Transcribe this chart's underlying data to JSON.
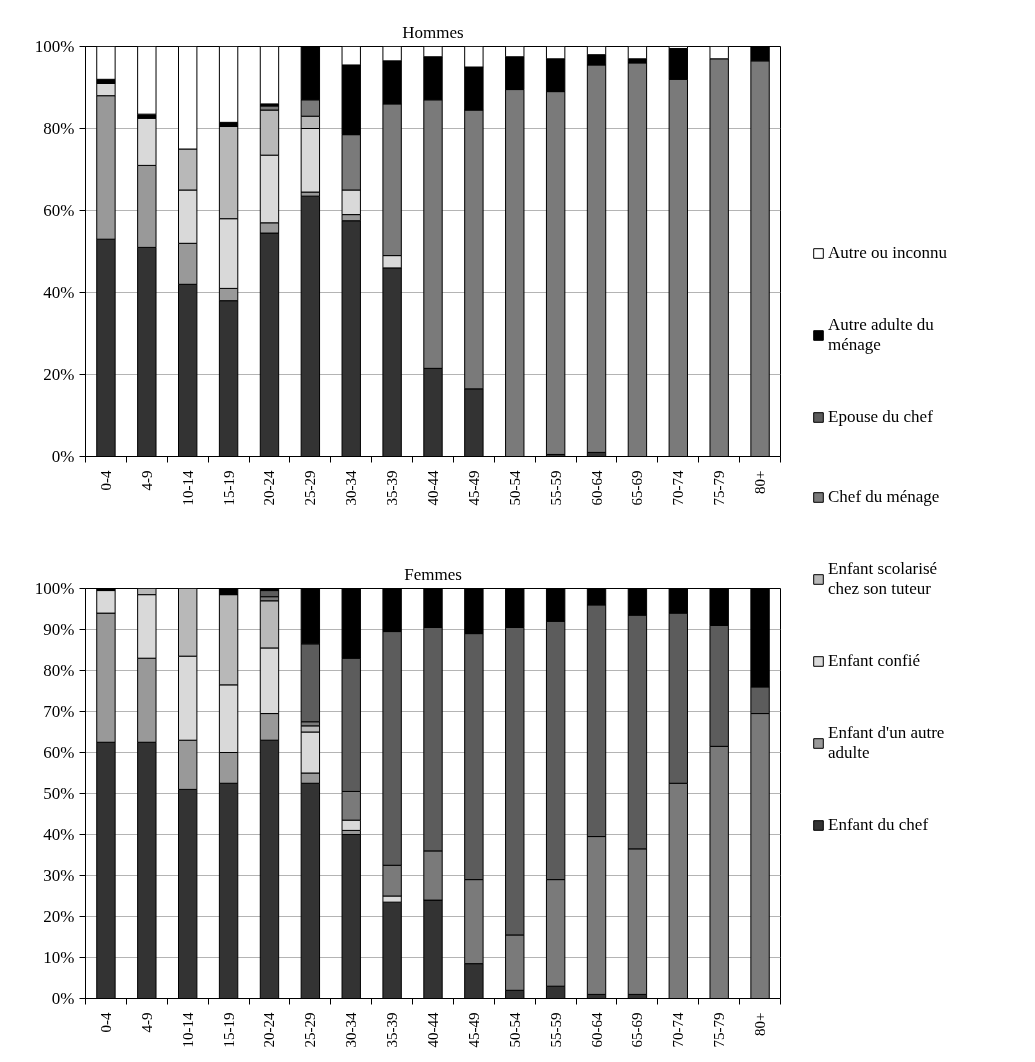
{
  "chart_data": [
    {
      "type": "bar",
      "stacked": true,
      "title": "Hommes",
      "categories": [
        "0-4",
        "4-9",
        "10-14",
        "15-19",
        "20-24",
        "25-29",
        "30-34",
        "35-39",
        "40-44",
        "45-49",
        "50-54",
        "55-59",
        "60-64",
        "65-69",
        "70-74",
        "75-79",
        "80+"
      ],
      "series": [
        {
          "name": "Enfant du chef",
          "color": "#333333",
          "values": [
            53,
            51,
            42,
            38,
            54.5,
            63.5,
            57.5,
            46,
            21.5,
            16.5,
            null,
            0.5,
            1,
            null,
            null,
            null,
            null
          ]
        },
        {
          "name": "Enfant d'un autre adulte",
          "color": "#999999",
          "values": [
            35,
            20,
            10,
            3,
            2.5,
            1,
            1.5,
            null,
            null,
            null,
            null,
            null,
            null,
            null,
            null,
            null,
            null
          ]
        },
        {
          "name": "Enfant confié",
          "color": "#d9d9d9",
          "values": [
            3,
            11.5,
            13,
            17,
            16.5,
            15.5,
            6,
            3,
            null,
            null,
            null,
            null,
            null,
            null,
            null,
            null,
            null
          ]
        },
        {
          "name": "Enfant scolarisé chez son tuteur",
          "color": "#b8b8b8",
          "values": [
            null,
            null,
            10,
            22.5,
            11,
            3,
            null,
            null,
            null,
            null,
            null,
            null,
            null,
            null,
            null,
            null,
            null
          ]
        },
        {
          "name": "Chef du ménage",
          "color": "#7a7a7a",
          "values": [
            null,
            null,
            null,
            null,
            1,
            4,
            13.5,
            37,
            65.5,
            68,
            89.5,
            88.5,
            94.5,
            96,
            92,
            97,
            96.5
          ]
        },
        {
          "name": "Epouse du chef",
          "color": "#5c5c5c",
          "values": [
            null,
            null,
            null,
            null,
            null,
            null,
            null,
            null,
            null,
            null,
            null,
            null,
            null,
            null,
            null,
            null,
            null
          ]
        },
        {
          "name": "Autre adulte du ménage",
          "color": "#000000",
          "values": [
            1,
            1,
            null,
            1,
            0.5,
            13,
            17,
            10.5,
            10.5,
            10.5,
            8,
            8,
            2.5,
            1,
            7.5,
            null,
            3.5
          ]
        },
        {
          "name": "Autre ou inconnu",
          "color": "#ffffff",
          "values": [
            8,
            16.5,
            25,
            18.5,
            14,
            null,
            4.5,
            3.5,
            2.5,
            5,
            2.5,
            3,
            2,
            3,
            0.5,
            3,
            null
          ]
        }
      ],
      "ylim": [
        0,
        100
      ],
      "yticks": [
        {
          "value": 0,
          "label": "0%"
        },
        {
          "value": 20,
          "label": "20%"
        },
        {
          "value": 40,
          "label": "40%"
        },
        {
          "value": 60,
          "label": "60%"
        },
        {
          "value": 80,
          "label": "80%"
        },
        {
          "value": 100,
          "label": "100%"
        }
      ],
      "grid": "y",
      "legend": "right"
    },
    {
      "type": "bar",
      "stacked": true,
      "title": "Femmes",
      "categories": [
        "0-4",
        "4-9",
        "10-14",
        "15-19",
        "20-24",
        "25-29",
        "30-34",
        "35-39",
        "40-44",
        "45-49",
        "50-54",
        "55-59",
        "60-64",
        "65-69",
        "70-74",
        "75-79",
        "80+"
      ],
      "series": [
        {
          "color": "#333333",
          "values": [
            62.5,
            62.5,
            51,
            52.5,
            63,
            52.5,
            40,
            23.5,
            24,
            8.5,
            2,
            3,
            1,
            1,
            null,
            null,
            null
          ]
        },
        {
          "color": "#999999",
          "values": [
            31.5,
            20.5,
            12,
            7.5,
            6.5,
            2.5,
            1,
            null,
            null,
            null,
            null,
            null,
            null,
            null,
            null,
            null,
            null
          ]
        },
        {
          "color": "#d9d9d9",
          "values": [
            5.5,
            15.5,
            20.5,
            16.5,
            16,
            10,
            2.5,
            1.5,
            null,
            null,
            null,
            null,
            null,
            null,
            null,
            null,
            null
          ]
        },
        {
          "color": "#b8b8b8",
          "values": [
            null,
            1.5,
            16.5,
            22,
            11.5,
            1.5,
            null,
            null,
            null,
            null,
            null,
            null,
            null,
            null,
            null,
            null,
            null
          ]
        },
        {
          "color": "#7a7a7a",
          "values": [
            null,
            null,
            null,
            null,
            1,
            1,
            7,
            7.5,
            12,
            20.5,
            13.5,
            26,
            38.5,
            35.5,
            52.5,
            61.5,
            69.5
          ]
        },
        {
          "color": "#5c5c5c",
          "values": [
            null,
            null,
            null,
            null,
            1.5,
            19,
            32.5,
            57,
            54.5,
            60,
            75,
            63,
            56.5,
            57,
            41.5,
            29.5,
            6.5
          ]
        },
        {
          "color": "#000000",
          "values": [
            0.5,
            null,
            null,
            1.5,
            0.5,
            13.5,
            17,
            10.5,
            9.5,
            11,
            9.5,
            8,
            4,
            6.5,
            6,
            9,
            24
          ]
        }
      ],
      "ylim": [
        0,
        100
      ],
      "yticks": [
        {
          "value": 0,
          "label": "0%"
        },
        {
          "value": 10,
          "label": "10%"
        },
        {
          "value": 20,
          "label": "20%"
        },
        {
          "value": 30,
          "label": "30%"
        },
        {
          "value": 40,
          "label": "40%"
        },
        {
          "value": 50,
          "label": "50%"
        },
        {
          "value": 60,
          "label": "60%"
        },
        {
          "value": 70,
          "label": "70%"
        },
        {
          "value": 80,
          "label": "80%"
        },
        {
          "value": 90,
          "label": "90%"
        },
        {
          "value": 100,
          "label": "100%"
        }
      ],
      "grid": "y"
    }
  ]
}
